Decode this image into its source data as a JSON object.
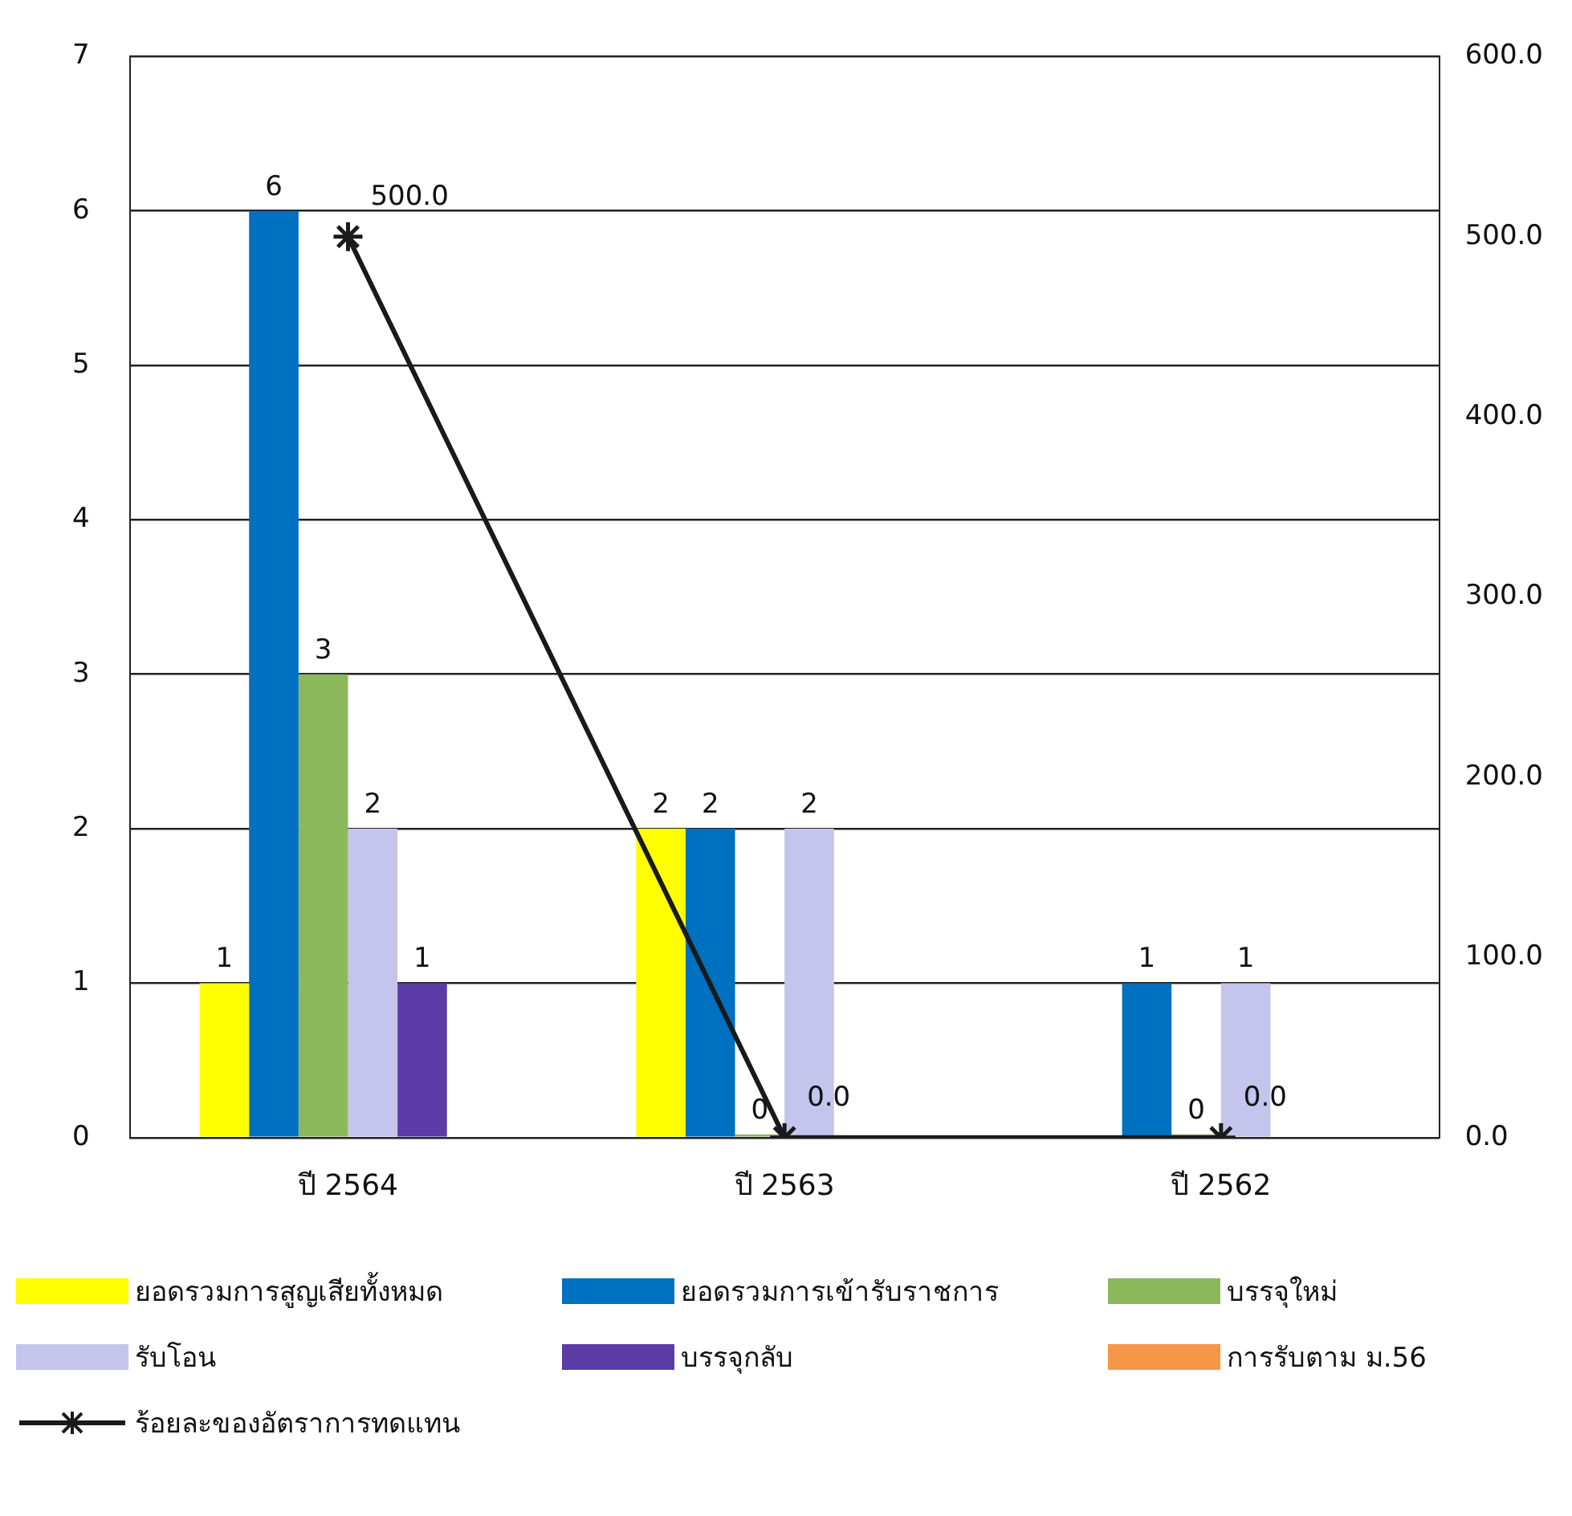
{
  "chart_data": {
    "type": "bar",
    "categories": [
      "ปี 2564",
      "ปี 2563",
      "ปี 2562"
    ],
    "series": [
      {
        "name": "ยอดรวมการสูญเสียทั้งหมด",
        "color": "#ffff00",
        "values": [
          1,
          2,
          null
        ],
        "value_labels": [
          "1",
          "2",
          null
        ]
      },
      {
        "name": "ยอดรวมการเข้ารับราชการ",
        "color": "#0070c0",
        "values": [
          6,
          2,
          1
        ],
        "value_labels": [
          "6",
          "2",
          "1"
        ]
      },
      {
        "name": "บรรจุใหม่",
        "color": "#8cb85c",
        "values": [
          3,
          0,
          0
        ],
        "value_labels": [
          "3",
          "0",
          "0"
        ]
      },
      {
        "name": "รับโอน",
        "color": "#c4c4ec",
        "values": [
          2,
          2,
          1
        ],
        "value_labels": [
          "2",
          "2",
          "1"
        ]
      },
      {
        "name": "บรรจุกลับ",
        "color": "#5b3ba6",
        "values": [
          1,
          null,
          null
        ],
        "value_labels": [
          "1",
          null,
          null
        ]
      },
      {
        "name": "การรับตาม ม.56",
        "color": "#f79646",
        "values": [
          null,
          null,
          null
        ]
      },
      {
        "name": "ร้อยละของอัตราการทดแทน",
        "type": "line",
        "axis": "y2",
        "color": "#1a1a1a",
        "marker": "cross",
        "values": [
          500,
          0,
          0
        ],
        "value_labels": [
          "500.0",
          "0.0",
          "0.0"
        ]
      }
    ],
    "ylim": [
      0,
      7
    ],
    "yticks": [
      0,
      1,
      2,
      3,
      4,
      5,
      6,
      7
    ],
    "y2lim": [
      0,
      600
    ],
    "y2ticks": [
      {
        "value": 0,
        "label": "0.0"
      },
      {
        "value": 100,
        "label": "100.0"
      },
      {
        "value": 200,
        "label": "200.0"
      },
      {
        "value": 300,
        "label": "300.0"
      },
      {
        "value": 400,
        "label": "400.0"
      },
      {
        "value": 500,
        "label": "500.0"
      },
      {
        "value": 600,
        "label": "600.0"
      }
    ],
    "grid": "y",
    "legend": "bottom"
  }
}
